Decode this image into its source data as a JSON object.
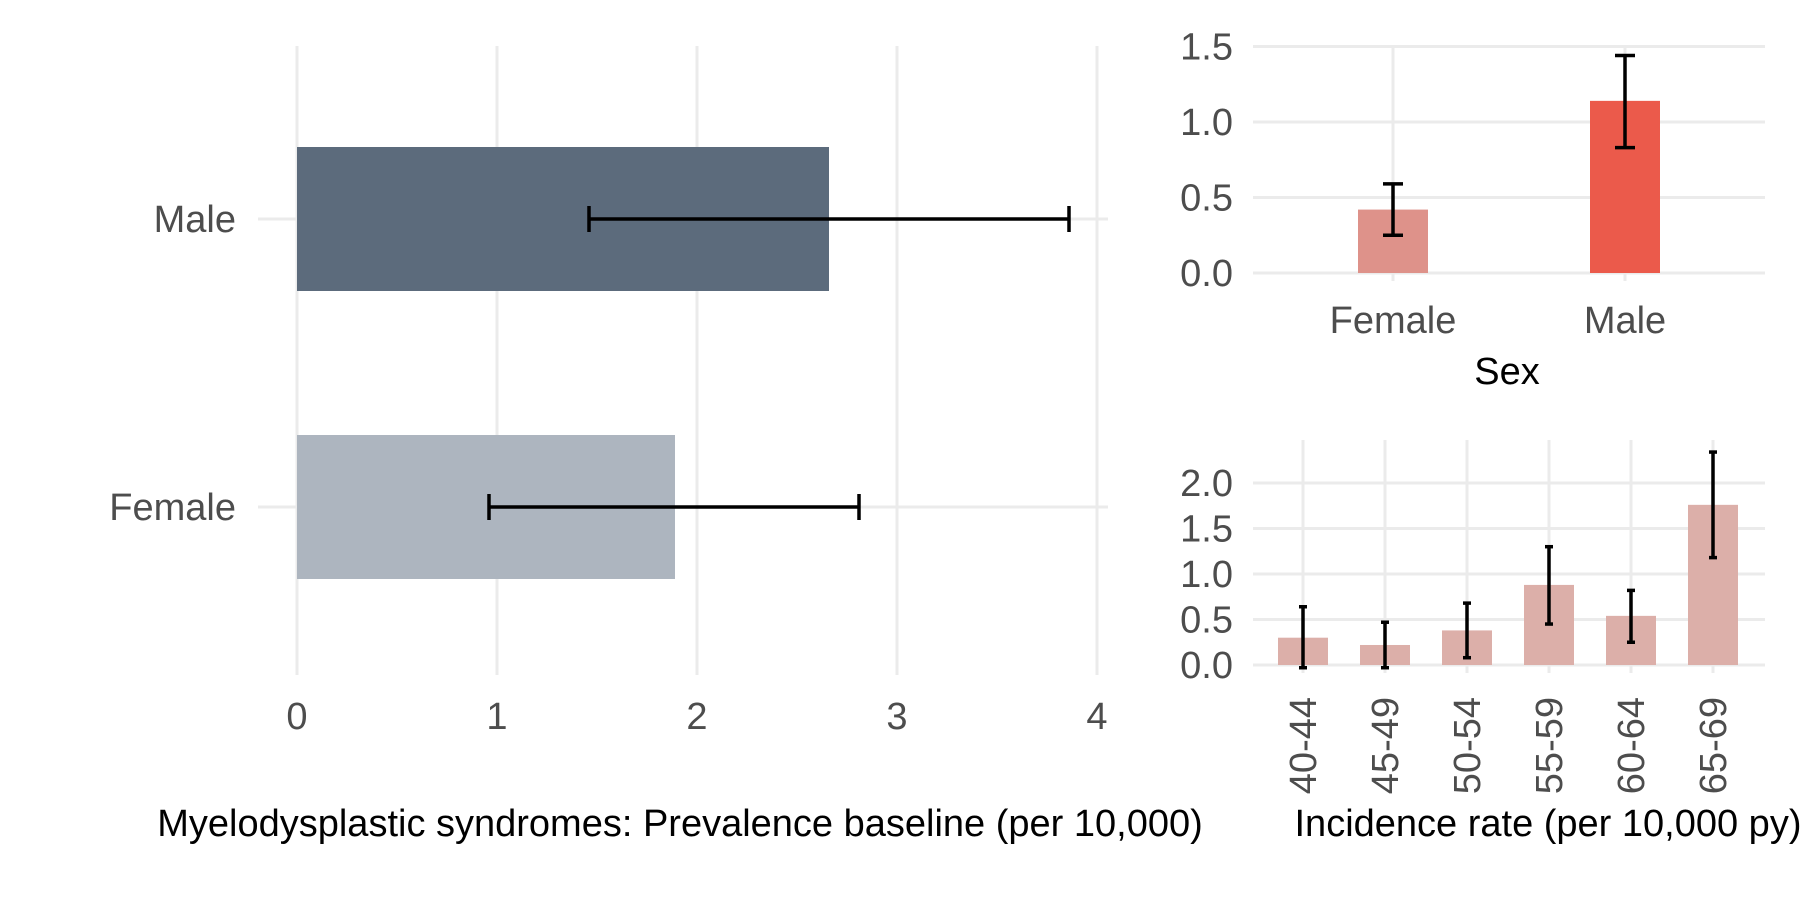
{
  "chart_data": [
    {
      "type": "bar",
      "orientation": "horizontal",
      "categories": [
        "Female",
        "Male"
      ],
      "values": [
        1.89,
        2.66
      ],
      "error_low": [
        0.96,
        1.46
      ],
      "error_high": [
        2.81,
        3.86
      ],
      "colors": [
        "#adb5bf",
        "#5c6b7c"
      ],
      "xlabel": "Myelodysplastic syndromes: Prevalence baseline (per 10,000)",
      "ylabel": "",
      "xlim": [
        0,
        4
      ],
      "xticks": [
        "0",
        "1",
        "2",
        "3",
        "4"
      ],
      "grid": true
    },
    {
      "type": "bar",
      "categories": [
        "Female",
        "Male"
      ],
      "values": [
        0.42,
        1.14
      ],
      "error_low": [
        0.25,
        0.83
      ],
      "error_high": [
        0.59,
        1.44
      ],
      "colors": [
        "#de928a",
        "#eb5a4b"
      ],
      "xlabel": "Sex",
      "ylabel": "",
      "ylim": [
        0,
        1.5
      ],
      "yticks": [
        "0.0",
        "0.5",
        "1.0",
        "1.5"
      ],
      "grid": true
    },
    {
      "type": "bar",
      "categories": [
        "40-44",
        "45-49",
        "50-54",
        "55-59",
        "60-64",
        "65-69"
      ],
      "values": [
        0.3,
        0.22,
        0.38,
        0.88,
        0.54,
        1.76
      ],
      "error_low": [
        -0.03,
        -0.03,
        0.08,
        0.45,
        0.25,
        1.18
      ],
      "error_high": [
        0.64,
        0.47,
        0.68,
        1.3,
        0.82,
        2.34
      ],
      "colors": [
        "#dcafa9"
      ],
      "xlabel": "Incidence rate (per 10,000 py)",
      "ylabel": "",
      "ylim": [
        0,
        2
      ],
      "yticks": [
        "0.0",
        "0.5",
        "1.0",
        "1.5",
        "2.0"
      ],
      "grid": true
    }
  ]
}
